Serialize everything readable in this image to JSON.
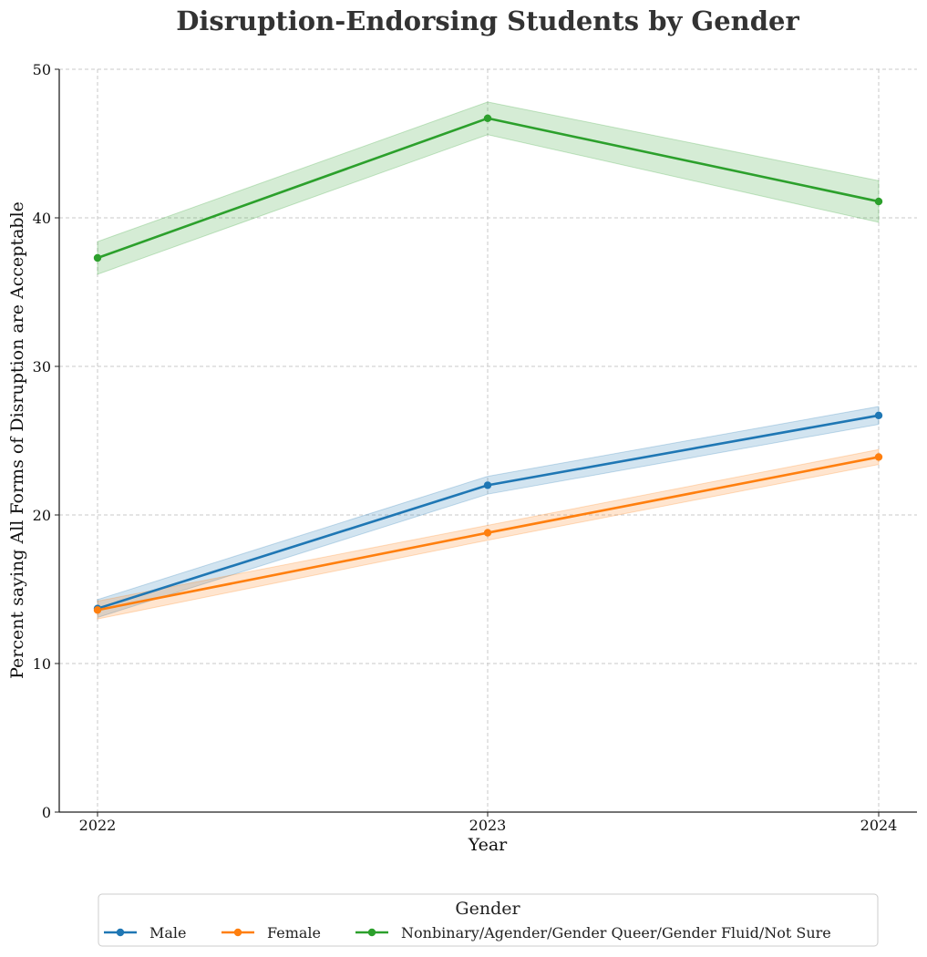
{
  "chart_data": {
    "type": "line",
    "title": "Disruption-Endorsing Students by Gender",
    "xlabel": "Year",
    "ylabel": "Percent saying All Forms of Disruption are Acceptable",
    "x": [
      "2022",
      "2023",
      "2024"
    ],
    "ylim": [
      0,
      50
    ],
    "yticks": [
      0,
      10,
      20,
      30,
      40,
      50
    ],
    "grid": true,
    "legend": {
      "title": "Gender",
      "position": "bottom"
    },
    "series": [
      {
        "name": "Male",
        "color": "#1f77b4",
        "values": [
          13.7,
          22.0,
          26.7
        ],
        "ci_low": [
          13.1,
          21.4,
          26.1
        ],
        "ci_high": [
          14.3,
          22.6,
          27.3
        ]
      },
      {
        "name": "Female",
        "color": "#ff7f0e",
        "values": [
          13.6,
          18.8,
          23.9
        ],
        "ci_low": [
          13.0,
          18.3,
          23.4
        ],
        "ci_high": [
          14.2,
          19.3,
          24.4
        ]
      },
      {
        "name": "Nonbinary/Agender/Gender Queer/Gender Fluid/Not Sure",
        "color": "#2ca02c",
        "values": [
          37.3,
          46.7,
          41.1
        ],
        "ci_low": [
          36.2,
          45.6,
          39.7
        ],
        "ci_high": [
          38.4,
          47.8,
          42.5
        ]
      }
    ]
  }
}
